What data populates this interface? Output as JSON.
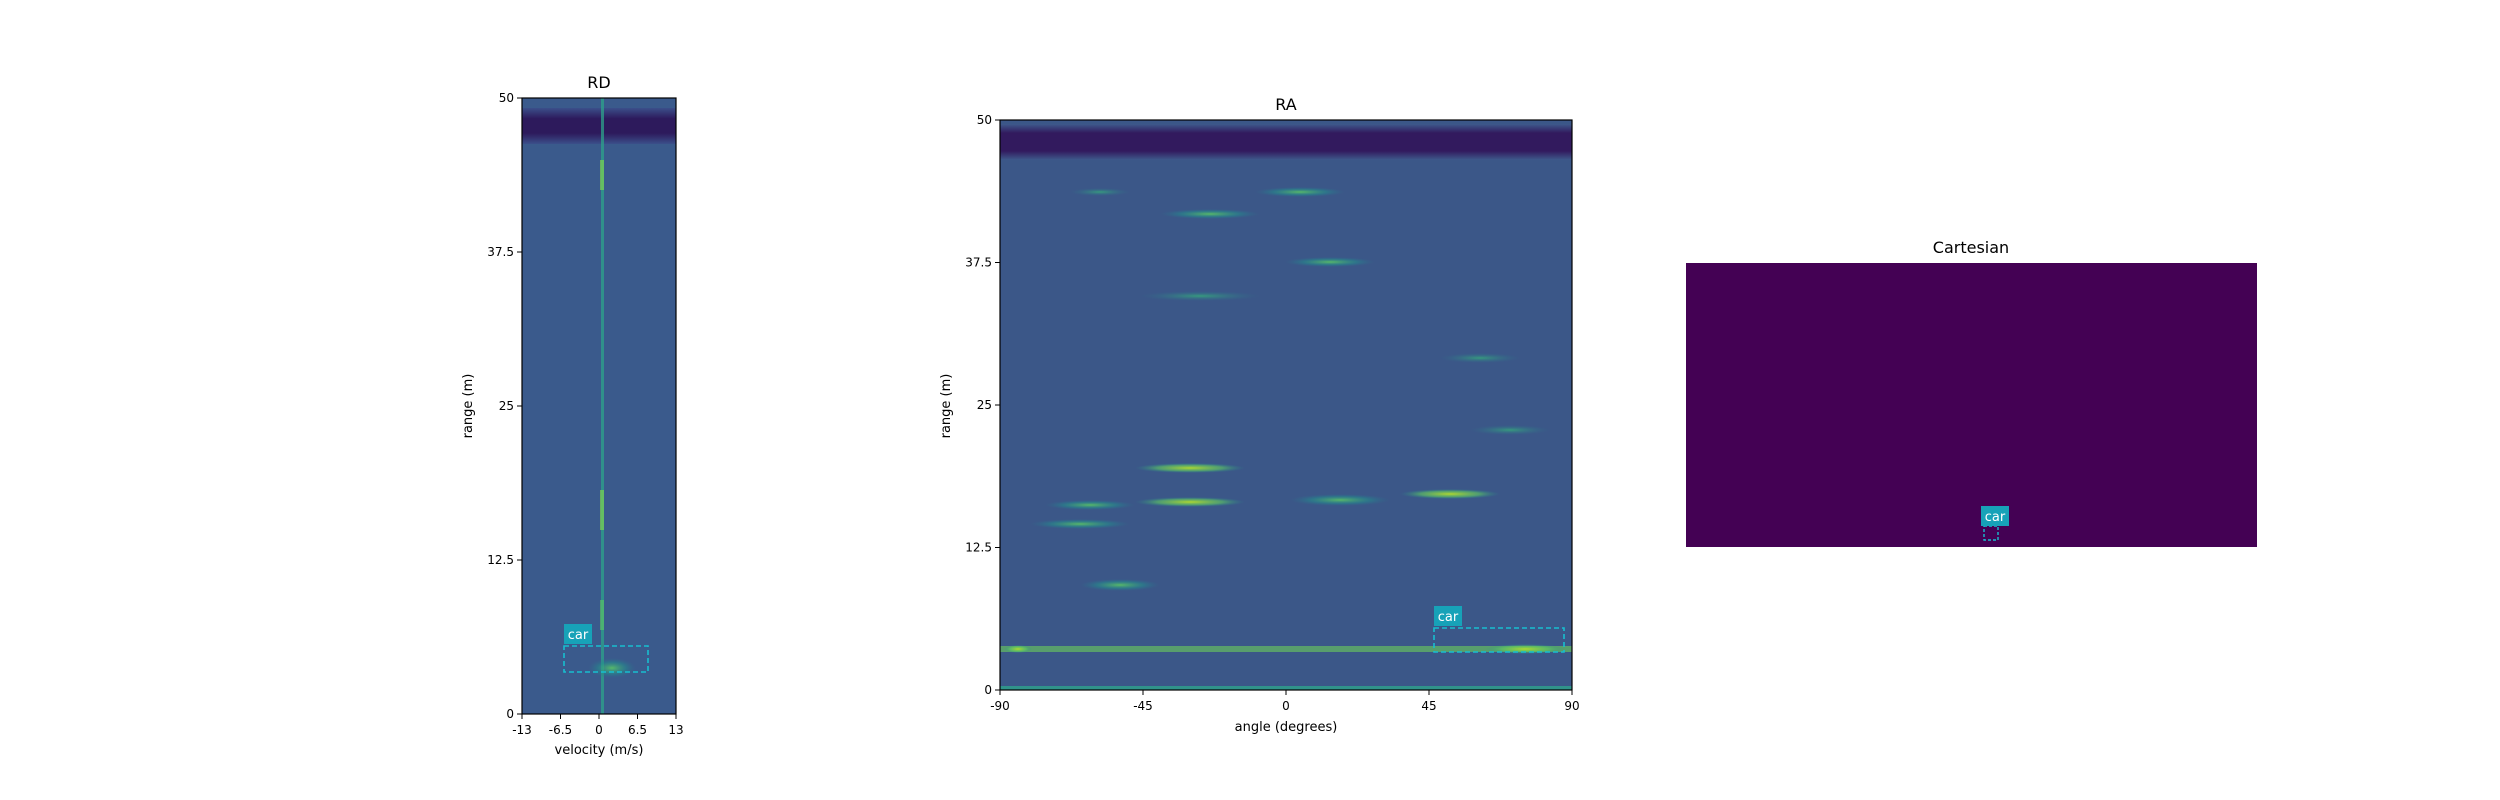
{
  "chart_data": [
    {
      "type": "heatmap",
      "title": "RD",
      "xlabel": "velocity (m/s)",
      "ylabel": "range (m)",
      "xlim": [
        -13,
        13
      ],
      "ylim": [
        0,
        50
      ],
      "xticks": [
        {
          "value": -13,
          "label": "-13"
        },
        {
          "value": -6.5,
          "label": "-6.5"
        },
        {
          "value": 0,
          "label": "0"
        },
        {
          "value": 6.5,
          "label": "6.5"
        },
        {
          "value": 13,
          "label": "13"
        }
      ],
      "yticks": [
        {
          "value": 0,
          "label": "0"
        },
        {
          "value": 12.5,
          "label": "12.5"
        },
        {
          "value": 25,
          "label": "25"
        },
        {
          "value": 37.5,
          "label": "37.5"
        },
        {
          "value": 50,
          "label": "50"
        }
      ],
      "colormap": "viridis",
      "annotations": [
        {
          "label": "car",
          "x0": -6,
          "x1": 8,
          "y0": 3.5,
          "y1": 5.5,
          "color": "#17becf"
        }
      ]
    },
    {
      "type": "heatmap",
      "title": "RA",
      "xlabel": "angle (degrees)",
      "ylabel": "range (m)",
      "xlim": [
        -90,
        90
      ],
      "ylim": [
        0,
        50
      ],
      "xticks": [
        {
          "value": -90,
          "label": "-90"
        },
        {
          "value": -45,
          "label": "-45"
        },
        {
          "value": 0,
          "label": "0"
        },
        {
          "value": 45,
          "label": "45"
        },
        {
          "value": 90,
          "label": "90"
        }
      ],
      "yticks": [
        {
          "value": 0,
          "label": "0"
        },
        {
          "value": 12.5,
          "label": "12.5"
        },
        {
          "value": 25,
          "label": "25"
        },
        {
          "value": 37.5,
          "label": "37.5"
        },
        {
          "value": 50,
          "label": "50"
        }
      ],
      "colormap": "viridis",
      "annotations": [
        {
          "label": "car",
          "x0": 46,
          "x1": 87,
          "y0": 3.5,
          "y1": 5.5,
          "color": "#17becf"
        }
      ]
    },
    {
      "type": "heatmap",
      "title": "Cartesian",
      "axes_visible": false,
      "background_color": "#440154",
      "annotations": [
        {
          "label": "car",
          "color": "#17becf"
        }
      ]
    }
  ],
  "colors": {
    "viridis_dark": "#440154",
    "viridis_low": "#3b528b",
    "viridis_mid": "#21908d",
    "viridis_high": "#5dc963",
    "viridis_top": "#fde725",
    "annotation": "#17becf"
  }
}
